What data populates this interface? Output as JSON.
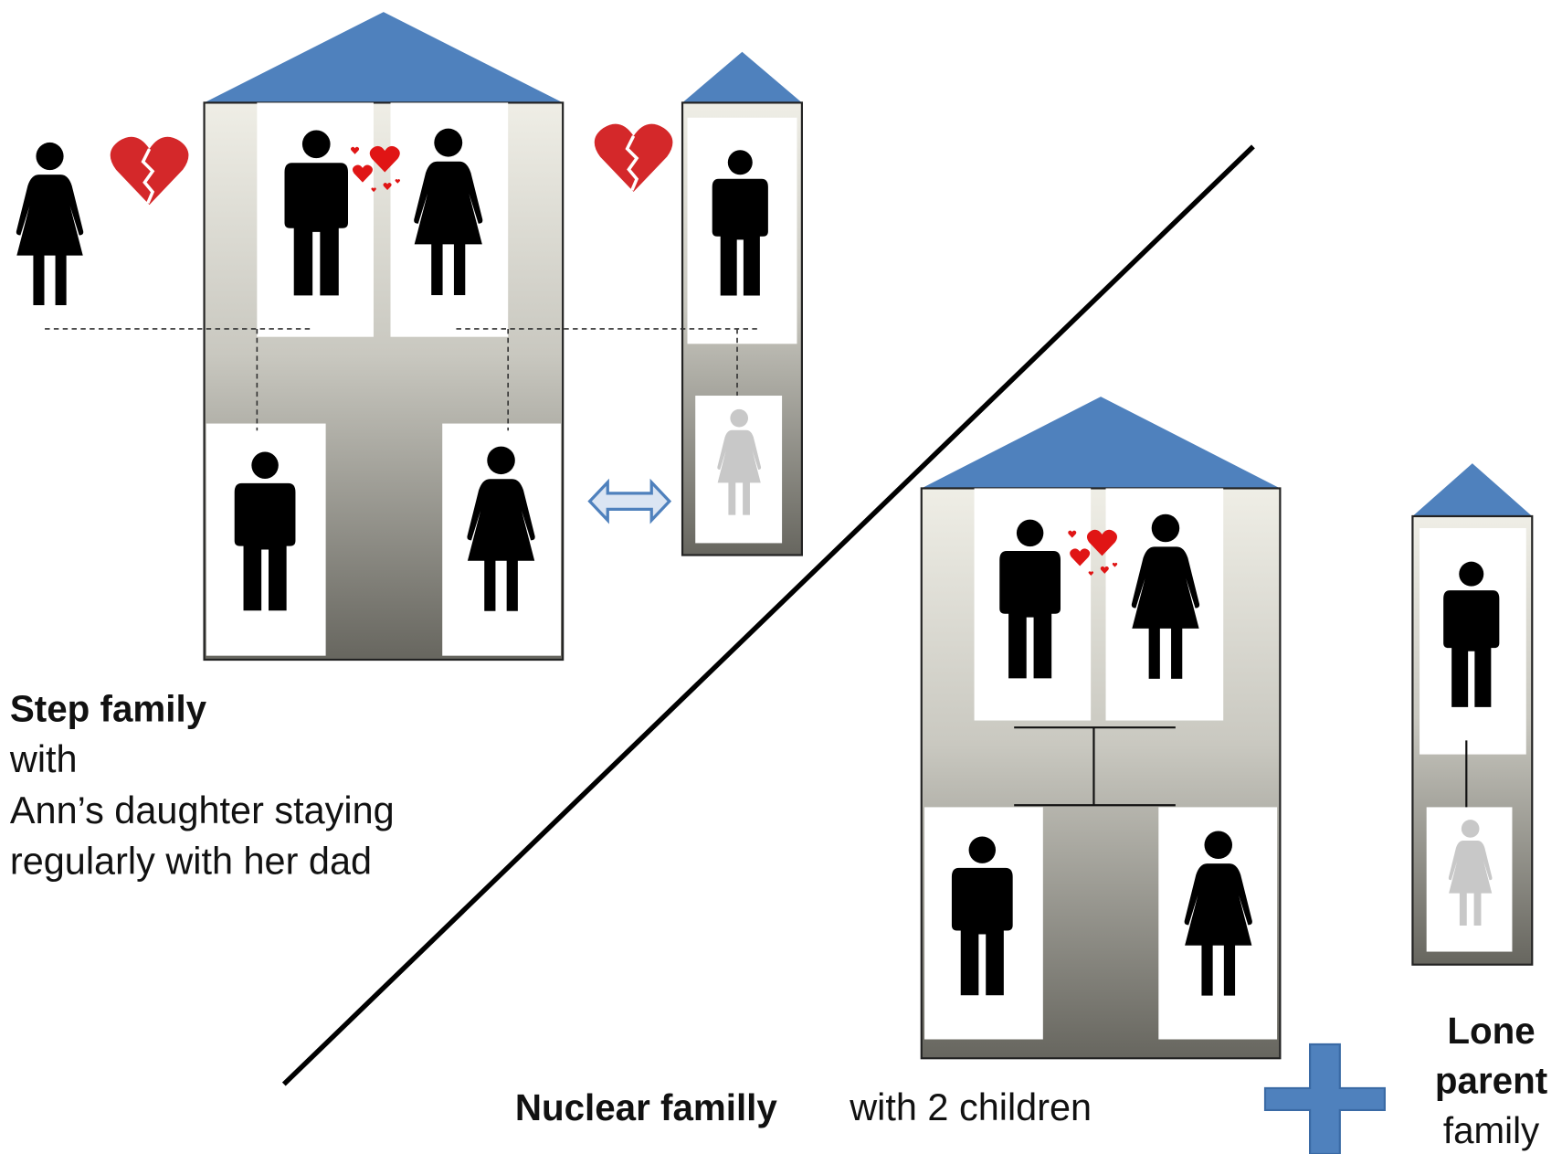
{
  "step_family": {
    "title": "Step family",
    "lines": [
      "with",
      "Ann’s daughter staying",
      "regularly with her dad"
    ]
  },
  "nuclear_family": {
    "title": "Nuclear familly",
    "subtitle": "with 2 children"
  },
  "lone_parent_family": {
    "lines": [
      "Lone",
      "parent",
      "family"
    ]
  }
}
